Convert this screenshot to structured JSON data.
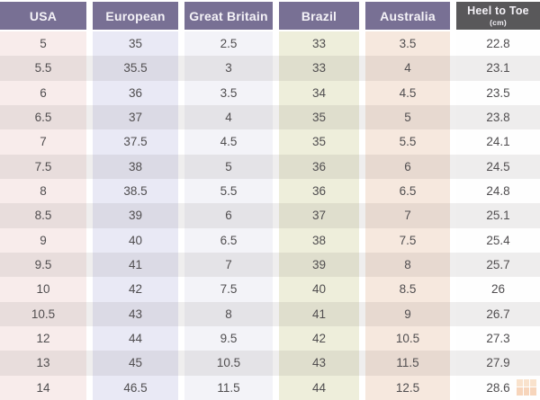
{
  "chart_data": {
    "type": "table",
    "columns": [
      {
        "label": "USA"
      },
      {
        "label": "European"
      },
      {
        "label": "Great Britain"
      },
      {
        "label": "Brazil"
      },
      {
        "label": "Australia"
      },
      {
        "label": "Heel to Toe",
        "sublabel": "(cm)"
      }
    ],
    "rows": [
      [
        "5",
        "35",
        "2.5",
        "33",
        "3.5",
        "22.8"
      ],
      [
        "5.5",
        "35.5",
        "3",
        "33",
        "4",
        "23.1"
      ],
      [
        "6",
        "36",
        "3.5",
        "34",
        "4.5",
        "23.5"
      ],
      [
        "6.5",
        "37",
        "4",
        "35",
        "5",
        "23.8"
      ],
      [
        "7",
        "37.5",
        "4.5",
        "35",
        "5.5",
        "24.1"
      ],
      [
        "7.5",
        "38",
        "5",
        "36",
        "6",
        "24.5"
      ],
      [
        "8",
        "38.5",
        "5.5",
        "36",
        "6.5",
        "24.8"
      ],
      [
        "8.5",
        "39",
        "6",
        "37",
        "7",
        "25.1"
      ],
      [
        "9",
        "40",
        "6.5",
        "38",
        "7.5",
        "25.4"
      ],
      [
        "9.5",
        "41",
        "7",
        "39",
        "8",
        "25.7"
      ],
      [
        "10",
        "42",
        "7.5",
        "40",
        "8.5",
        "26"
      ],
      [
        "10.5",
        "43",
        "8",
        "41",
        "9",
        "26.7"
      ],
      [
        "12",
        "44",
        "9.5",
        "42",
        "10.5",
        "27.3"
      ],
      [
        "13",
        "45",
        "10.5",
        "43",
        "11.5",
        "27.9"
      ],
      [
        "14",
        "46.5",
        "11.5",
        "44",
        "12.5",
        "28.6"
      ]
    ],
    "layout": {
      "header_style": "solid-blocks",
      "row_striping": "alternate",
      "grid": false,
      "legend": "none"
    }
  },
  "colors": {
    "header_purple": "#787094",
    "header_dark_gray": "#59585a",
    "header_text": "#f4f2f7",
    "cell_text": "#4f4d4f",
    "col_usa_tint": "#f8eceb",
    "col_european_tint": "#e9e9f5",
    "col_great_britain_tint": "#f3f3f8",
    "col_brazil_tint": "#eeeedb",
    "col_australia_tint": "#f6e8de",
    "col_heel_to_toe_tint": "#fefefe",
    "watermark_orange": "#f2ae7a"
  },
  "watermark": {
    "icon": "grid-logo"
  }
}
